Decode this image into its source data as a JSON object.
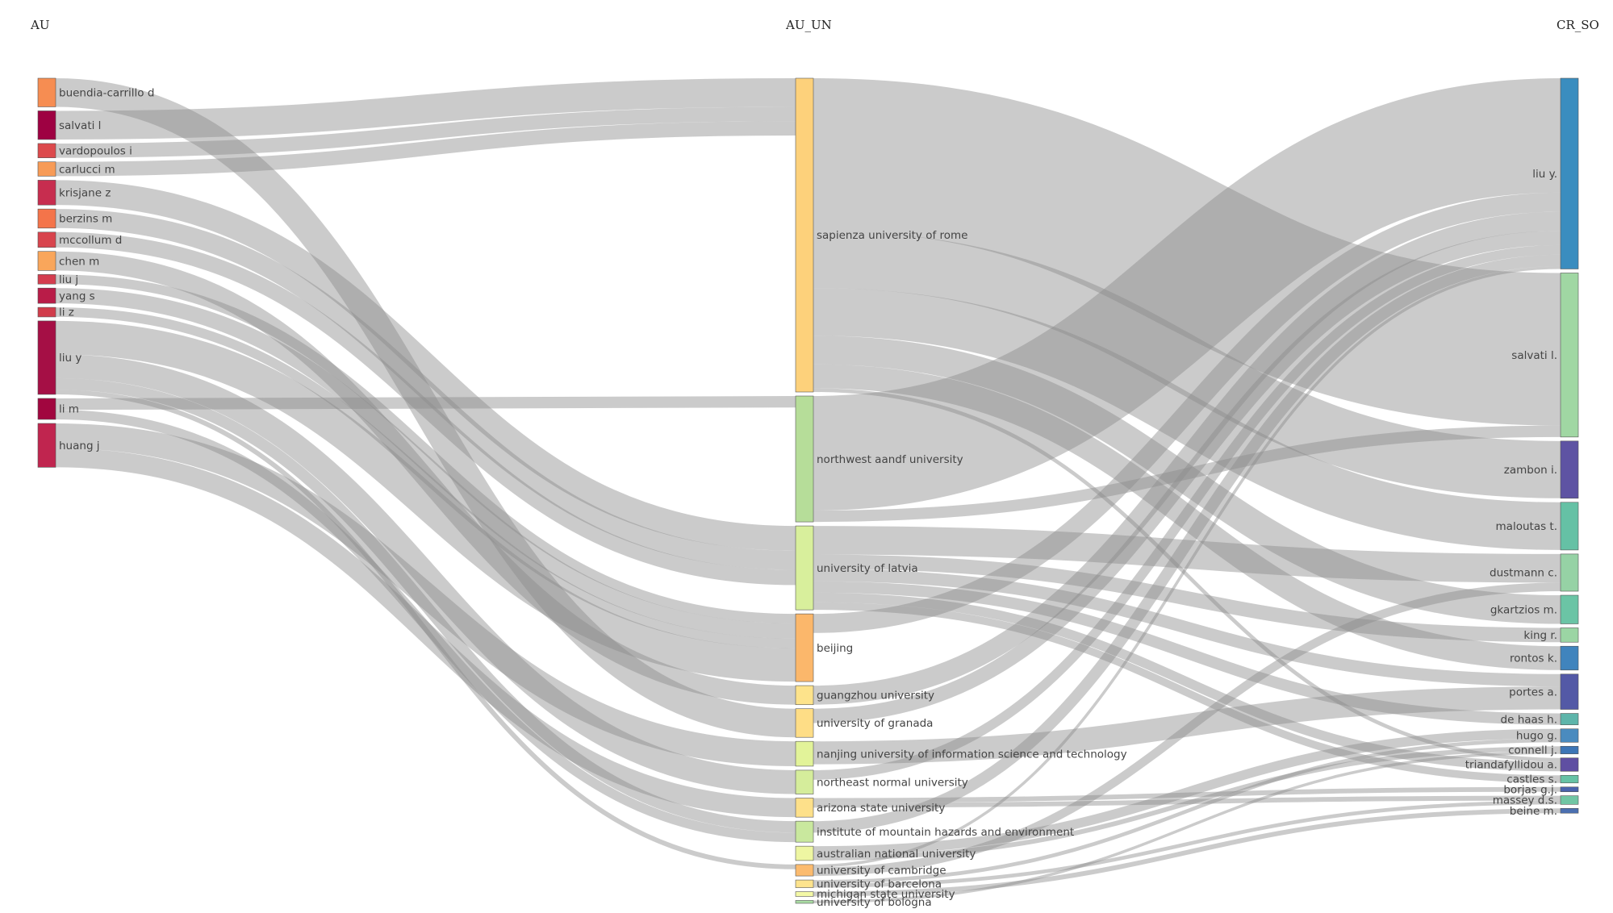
{
  "columns": [
    {
      "key": "au",
      "title": "AU"
    },
    {
      "key": "un",
      "title": "AU_UN"
    },
    {
      "key": "so",
      "title": "CR_SO"
    }
  ],
  "chart_data": {
    "type": "sankey",
    "nodes": {
      "au": [
        {
          "name": "buendia-carrillo d",
          "color": "#f68d52"
        },
        {
          "name": "salvati l",
          "color": "#9e0142"
        },
        {
          "name": "vardopoulos i",
          "color": "#dc494c"
        },
        {
          "name": "carlucci m",
          "color": "#f79b57"
        },
        {
          "name": "krisjane z",
          "color": "#c72d4f"
        },
        {
          "name": "berzins m",
          "color": "#f4744a"
        },
        {
          "name": "mccollum d",
          "color": "#d8444d"
        },
        {
          "name": "chen m",
          "color": "#f9a65b"
        },
        {
          "name": "liu j",
          "color": "#d43d4f"
        },
        {
          "name": "yang s",
          "color": "#b91c48"
        },
        {
          "name": "li z",
          "color": "#d13c4b"
        },
        {
          "name": "liu y",
          "color": "#a50f45"
        },
        {
          "name": "li m",
          "color": "#a1063f"
        },
        {
          "name": "huang j",
          "color": "#c0254f"
        }
      ],
      "un": [
        {
          "name": "sapienza university of rome",
          "color": "#fdd17b"
        },
        {
          "name": "northwest aandf university",
          "color": "#b6dd99"
        },
        {
          "name": "university of latvia",
          "color": "#d8ef9c"
        },
        {
          "name": "beijing",
          "color": "#fbb76b"
        },
        {
          "name": "guangzhou university",
          "color": "#fde38b"
        },
        {
          "name": "university of granada",
          "color": "#fedd86"
        },
        {
          "name": "nanjing university of information science and technology",
          "color": "#e2f399"
        },
        {
          "name": "northeast normal university",
          "color": "#d5ed9b"
        },
        {
          "name": "arizona state university",
          "color": "#fde08a"
        },
        {
          "name": "institute of mountain hazards and environment",
          "color": "#c9e89e"
        },
        {
          "name": "australian national university",
          "color": "#eef6a2"
        },
        {
          "name": "university of cambridge",
          "color": "#fbbb6f"
        },
        {
          "name": "university of barcelona",
          "color": "#fde38d"
        },
        {
          "name": "michigan state university",
          "color": "#f3f8a6"
        },
        {
          "name": "university of bologna",
          "color": "#aadca4"
        }
      ],
      "so": [
        {
          "name": "liu y.",
          "color": "#3a8dbf"
        },
        {
          "name": "salvati l.",
          "color": "#a0d7a3"
        },
        {
          "name": "zambon i.",
          "color": "#5e53a3"
        },
        {
          "name": "maloutas t.",
          "color": "#65c1a5"
        },
        {
          "name": "dustmann c.",
          "color": "#96d2a5"
        },
        {
          "name": "gkartzios m.",
          "color": "#6bc4a5"
        },
        {
          "name": "king r.",
          "color": "#9bd5a4"
        },
        {
          "name": "rontos k.",
          "color": "#4084bd"
        },
        {
          "name": "portes a.",
          "color": "#5359a6"
        },
        {
          "name": "de haas h.",
          "color": "#5eb5aa"
        },
        {
          "name": "hugo g.",
          "color": "#4a8bbf"
        },
        {
          "name": "connell j.",
          "color": "#3d76b6"
        },
        {
          "name": "triandafyllidou a.",
          "color": "#5f4fa2"
        },
        {
          "name": "castles s.",
          "color": "#66c2a5"
        },
        {
          "name": "borjas g.j.",
          "color": "#4a63ad"
        },
        {
          "name": "massey d.s.",
          "color": "#71c6a4"
        },
        {
          "name": "beine m.",
          "color": "#4b70b1"
        }
      ]
    },
    "links_au_un": [
      {
        "source": "buendia-carrillo d",
        "target": "university of granada",
        "value": 3
      },
      {
        "source": "salvati l",
        "target": "sapienza university of rome",
        "value": 3
      },
      {
        "source": "vardopoulos i",
        "target": "sapienza university of rome",
        "value": 1.5
      },
      {
        "source": "carlucci m",
        "target": "sapienza university of rome",
        "value": 1.5
      },
      {
        "source": "krisjane z",
        "target": "university of latvia",
        "value": 2.6
      },
      {
        "source": "berzins m",
        "target": "university of latvia",
        "value": 2
      },
      {
        "source": "mccollum d",
        "target": "university of latvia",
        "value": 1.6
      },
      {
        "source": "chen m",
        "target": "guangzhou university",
        "value": 2
      },
      {
        "source": "liu j",
        "target": "beijing",
        "value": 1
      },
      {
        "source": "yang s",
        "target": "beijing",
        "value": 1.6
      },
      {
        "source": "li z",
        "target": "beijing",
        "value": 1
      },
      {
        "source": "liu y",
        "target": "beijing",
        "value": 3.5
      },
      {
        "source": "liu y",
        "target": "northeast normal university",
        "value": 2.5
      },
      {
        "source": "liu y",
        "target": "institute of mountain hazards and environment",
        "value": 1.2
      },
      {
        "source": "liu y",
        "target": "university of cambridge",
        "value": 0.5
      },
      {
        "source": "li m",
        "target": "northwest aandf university",
        "value": 1.2
      },
      {
        "source": "li m",
        "target": "institute of mountain hazards and environment",
        "value": 1
      },
      {
        "source": "huang j",
        "target": "nanjing university of information science and technology",
        "value": 2.6
      },
      {
        "source": "huang j",
        "target": "arizona state university",
        "value": 2
      }
    ],
    "links_un_so": [
      {
        "source": "sapienza university of rome",
        "target": "salvati l.",
        "value": 16
      },
      {
        "source": "sapienza university of rome",
        "target": "zambon i.",
        "value": 6
      },
      {
        "source": "sapienza university of rome",
        "target": "maloutas t.",
        "value": 5
      },
      {
        "source": "sapienza university of rome",
        "target": "gkartzios m.",
        "value": 3
      },
      {
        "source": "sapienza university of rome",
        "target": "rontos k.",
        "value": 2.5
      },
      {
        "source": "sapienza university of rome",
        "target": "triandafyllidou a.",
        "value": 0.4
      },
      {
        "source": "northwest aandf university",
        "target": "liu y.",
        "value": 12
      },
      {
        "source": "northwest aandf university",
        "target": "salvati l.",
        "value": 1.2
      },
      {
        "source": "university of latvia",
        "target": "dustmann c.",
        "value": 3
      },
      {
        "source": "university of latvia",
        "target": "king r.",
        "value": 1.5
      },
      {
        "source": "university of latvia",
        "target": "portes a.",
        "value": 1.3
      },
      {
        "source": "university of latvia",
        "target": "de haas h.",
        "value": 1.2
      },
      {
        "source": "university of latvia",
        "target": "triandafyllidou a.",
        "value": 1
      },
      {
        "source": "university of latvia",
        "target": "castles s.",
        "value": 0.8
      },
      {
        "source": "beijing",
        "target": "liu y.",
        "value": 2
      },
      {
        "source": "guangzhou university",
        "target": "liu y.",
        "value": 2
      },
      {
        "source": "university of granada",
        "target": "liu y.",
        "value": 1.5
      },
      {
        "source": "nanjing university of information science and technology",
        "target": "portes a.",
        "value": 2.4
      },
      {
        "source": "northeast normal university",
        "target": "liu y.",
        "value": 1
      },
      {
        "source": "arizona state university",
        "target": "borjas g.j.",
        "value": 0.5
      },
      {
        "source": "arizona state university",
        "target": "massey d.s.",
        "value": 0.5
      },
      {
        "source": "institute of mountain hazards and environment",
        "target": "liu y.",
        "value": 1.2
      },
      {
        "source": "australian national university",
        "target": "hugo g.",
        "value": 1
      },
      {
        "source": "australian national university",
        "target": "connell j.",
        "value": 0.5
      },
      {
        "source": "university of cambridge",
        "target": "liu y.",
        "value": 0.3
      },
      {
        "source": "university of cambridge",
        "target": "dustmann c.",
        "value": 0.9
      },
      {
        "source": "university of barcelona",
        "target": "hugo g.",
        "value": 0.4
      },
      {
        "source": "university of barcelona",
        "target": "massey d.s.",
        "value": 0.4
      },
      {
        "source": "michigan state university",
        "target": "beine m.",
        "value": 0.5
      },
      {
        "source": "university of bologna",
        "target": "connell j.",
        "value": 0.3
      }
    ]
  }
}
